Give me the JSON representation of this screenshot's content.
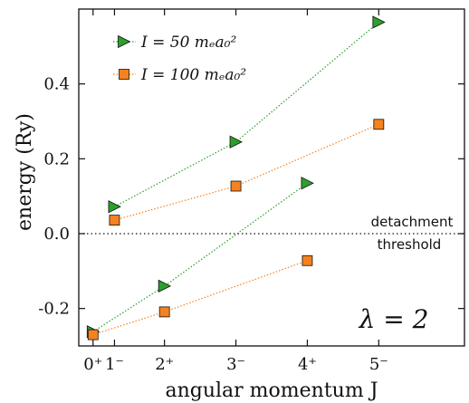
{
  "chart_data": {
    "type": "scatter",
    "xlabel": "angular momentum J",
    "ylabel": "energy (Ry)",
    "xlim": [
      -0.2,
      5.2
    ],
    "ylim": [
      -0.3,
      0.6
    ],
    "x_ticks": [
      {
        "value": 0,
        "label": "0⁺"
      },
      {
        "value": 0.3,
        "label": "1⁻"
      },
      {
        "value": 1,
        "label": "2⁺"
      },
      {
        "value": 2,
        "label": "3⁻"
      },
      {
        "value": 3,
        "label": "4⁺"
      },
      {
        "value": 4,
        "label": "5⁻"
      }
    ],
    "y_ticks": [
      {
        "value": -0.2,
        "label": "-0.2"
      },
      {
        "value": 0.0,
        "label": "0.0"
      },
      {
        "value": 0.2,
        "label": "0.2"
      },
      {
        "value": 0.4,
        "label": "0.4"
      }
    ],
    "series": [
      {
        "name": "I = 50 mₑa₀²",
        "marker": "triangle-right",
        "color": "#2ca02c",
        "line_color": "#2ca02c",
        "branches": [
          {
            "x": [
              0.0,
              1.0,
              3.0
            ],
            "y": [
              -0.262,
              -0.14,
              0.135
            ]
          },
          {
            "x": [
              0.3,
              2.0,
              4.0
            ],
            "y": [
              0.072,
              0.245,
              0.565
            ]
          }
        ]
      },
      {
        "name": "I = 100 mₑa₀²",
        "marker": "square",
        "color": "#f5821f",
        "line_color": "#f5821f",
        "branches": [
          {
            "x": [
              0.0,
              1.0,
              3.0
            ],
            "y": [
              -0.27,
              -0.209,
              -0.072
            ]
          },
          {
            "x": [
              0.3,
              2.0,
              4.0
            ],
            "y": [
              0.036,
              0.127,
              0.292
            ]
          }
        ]
      }
    ],
    "reference_line": {
      "y": 0.0,
      "style": "dotted"
    },
    "annotations": {
      "detachment_line1": "detachment",
      "detachment_line2": "threshold",
      "lambda": "λ = 2"
    },
    "legend_position": "top-left",
    "grid": false
  }
}
